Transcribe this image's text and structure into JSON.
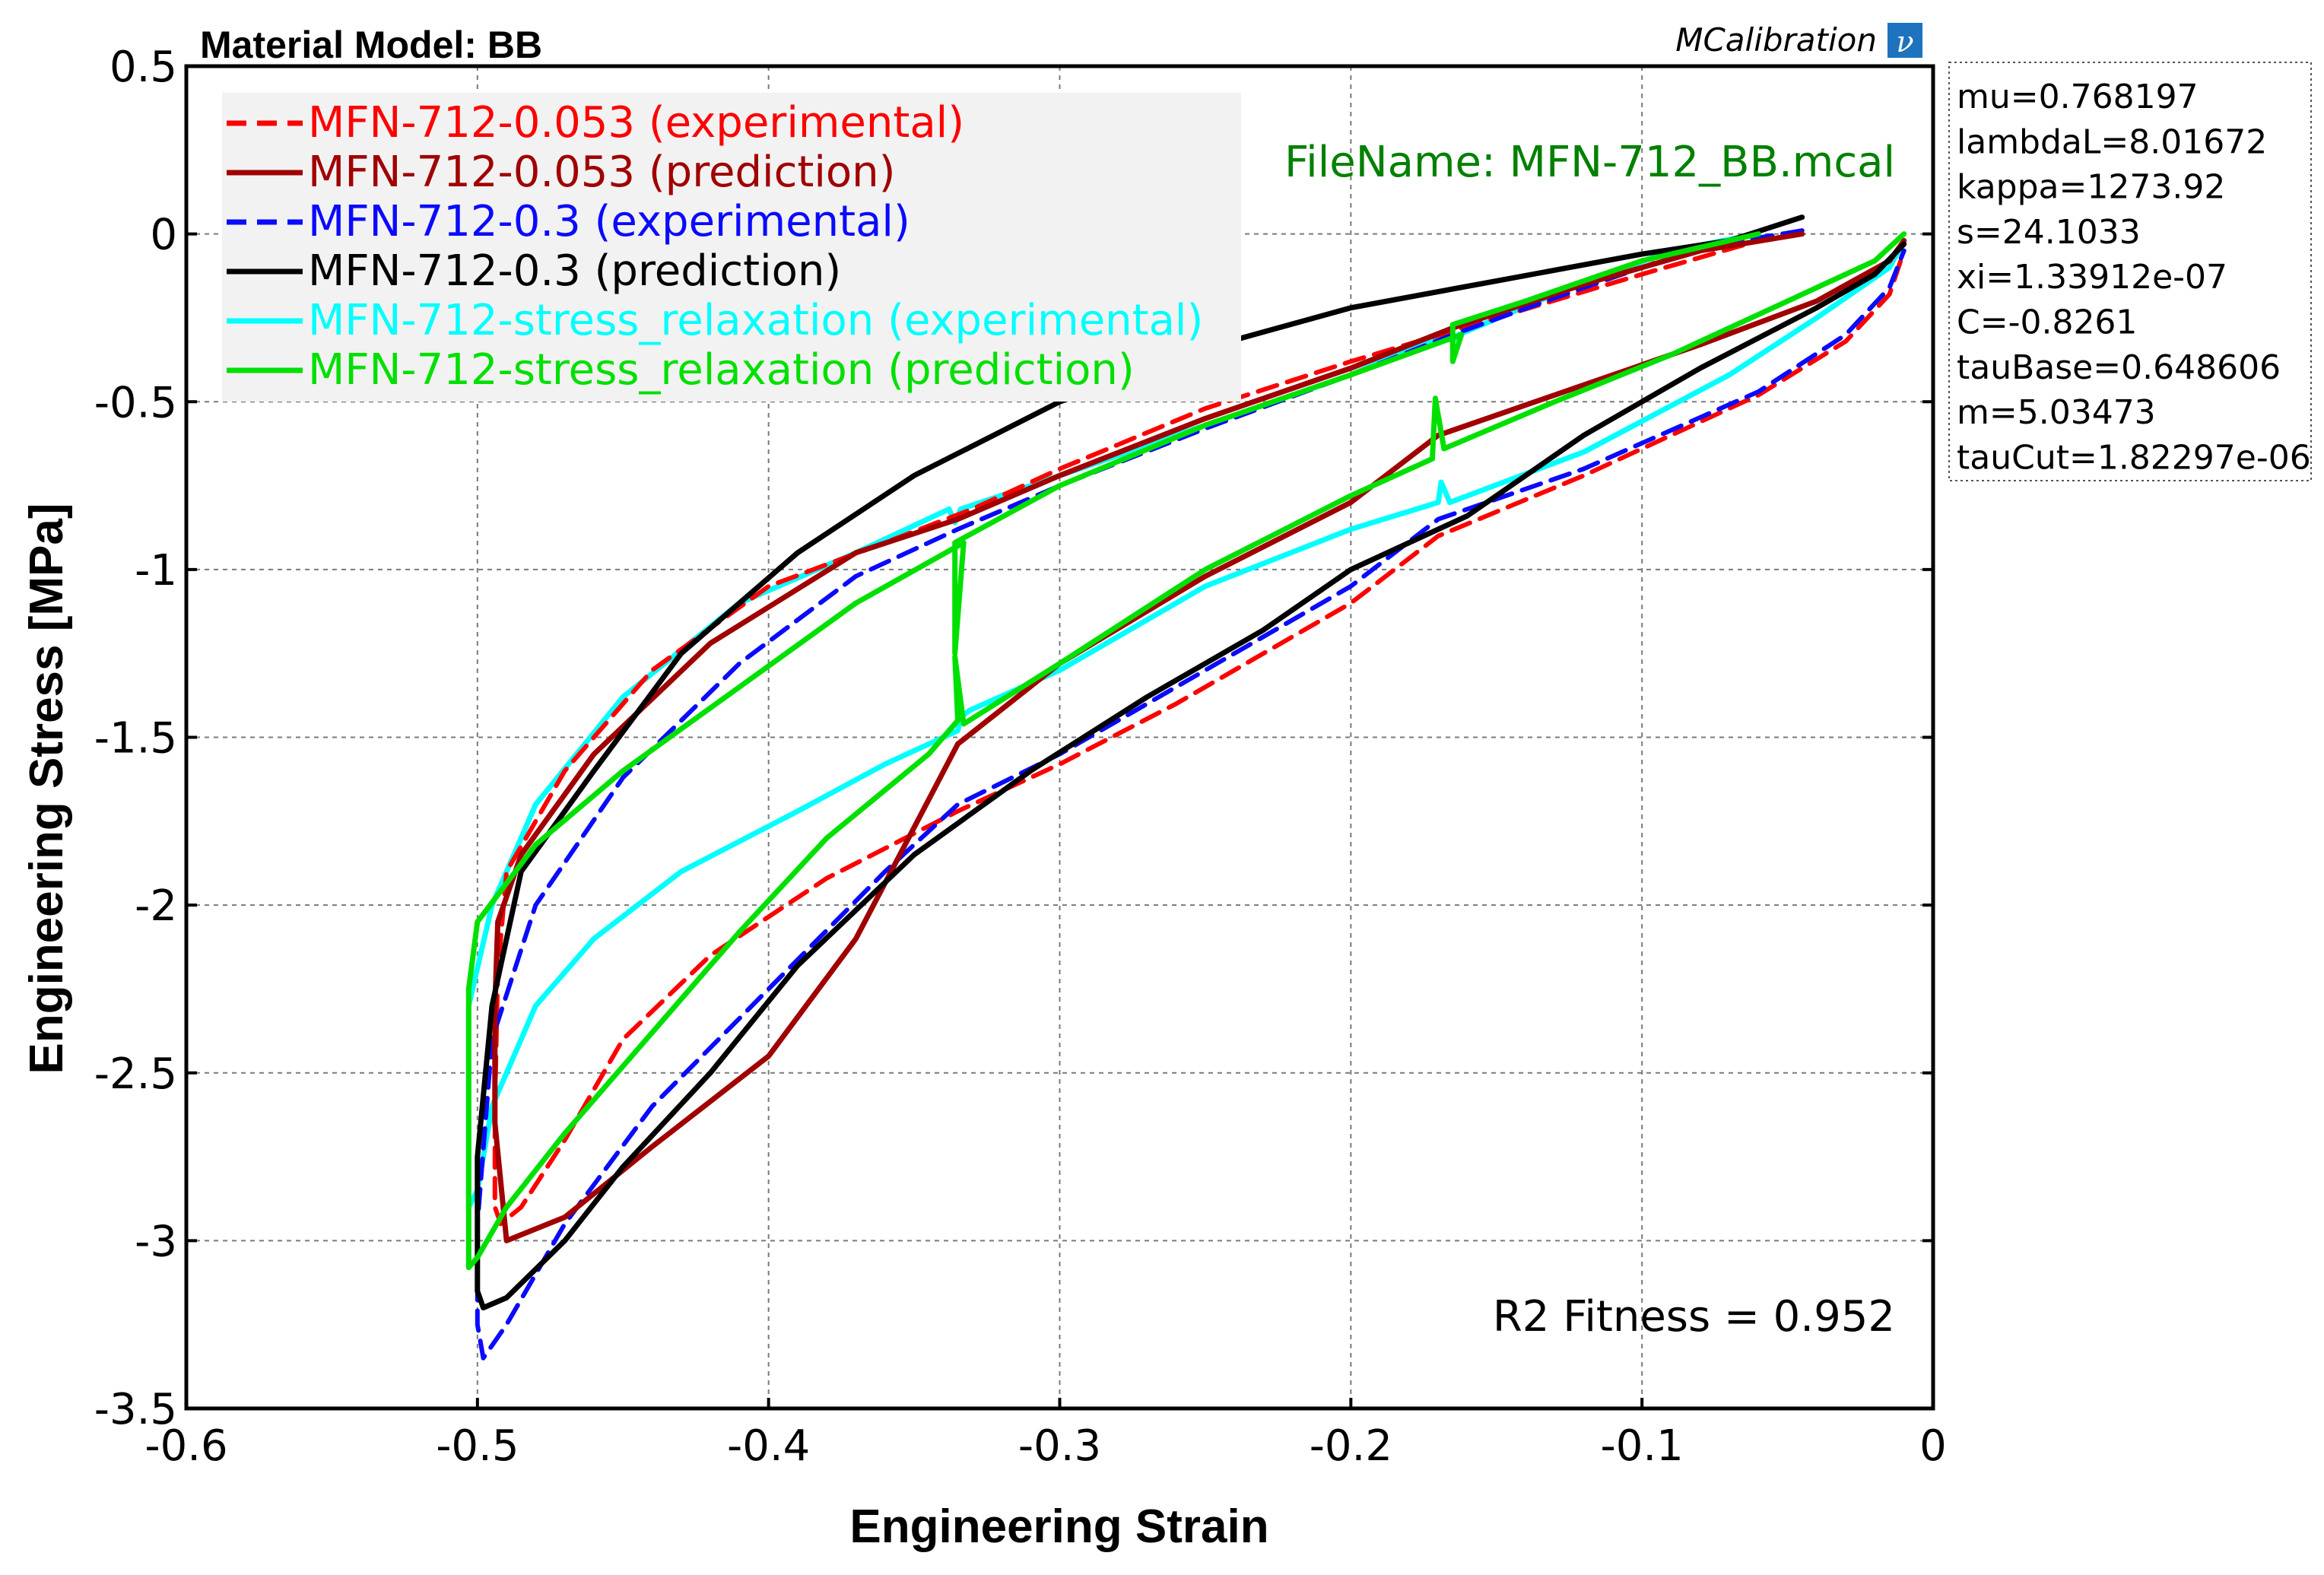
{
  "chart_data": {
    "type": "line",
    "title": "Material Model: BB",
    "brand": "MCalibration",
    "brand_icon": "mcalibration-logo-icon",
    "filename": "FileName: MFN-712_BB.mcal",
    "fitness": "R2 Fitness = 0.952",
    "xlabel": "Engineering Strain",
    "ylabel": "Engineering Stress [MPa]",
    "xlim": [
      -0.6,
      0
    ],
    "ylim": [
      -3.5,
      0.5
    ],
    "x_ticks": [
      "-0.6",
      "-0.5",
      "-0.4",
      "-0.3",
      "-0.2",
      "-0.1",
      "0"
    ],
    "y_ticks": [
      "0.5",
      "0",
      "-0.5",
      "-1",
      "-1.5",
      "-2",
      "-2.5",
      "-3",
      "-3.5"
    ],
    "grid": true,
    "legend_position": "top-left",
    "series": [
      {
        "name": "MFN-712-0.053 (experimental)",
        "color": "#ff0000",
        "dashed": true,
        "x": [
          -0.045,
          -0.06,
          -0.1,
          -0.15,
          -0.2,
          -0.25,
          -0.3,
          -0.33,
          -0.36,
          -0.4,
          -0.44,
          -0.47,
          -0.49,
          -0.493,
          -0.494,
          -0.494,
          -0.492,
          -0.485,
          -0.47,
          -0.45,
          -0.42,
          -0.38,
          -0.335,
          -0.3,
          -0.26,
          -0.2,
          -0.17,
          -0.12,
          -0.06,
          -0.03,
          -0.015,
          -0.01
        ],
        "y": [
          0.01,
          -0.02,
          -0.12,
          -0.25,
          -0.38,
          -0.52,
          -0.7,
          -0.82,
          -0.92,
          -1.05,
          -1.3,
          -1.6,
          -1.9,
          -2.2,
          -2.6,
          -2.9,
          -2.95,
          -2.9,
          -2.7,
          -2.4,
          -2.15,
          -1.92,
          -1.72,
          -1.58,
          -1.4,
          -1.1,
          -0.9,
          -0.72,
          -0.48,
          -0.32,
          -0.18,
          -0.05
        ]
      },
      {
        "name": "MFN-712-0.053 (prediction)",
        "color": "#a00000",
        "dashed": false,
        "x": [
          -0.045,
          -0.08,
          -0.12,
          -0.165,
          -0.2,
          -0.25,
          -0.3,
          -0.335,
          -0.37,
          -0.42,
          -0.46,
          -0.485,
          -0.493,
          -0.494,
          -0.494,
          -0.49,
          -0.47,
          -0.44,
          -0.4,
          -0.37,
          -0.335,
          -0.3,
          -0.25,
          -0.2,
          -0.17,
          -0.12,
          -0.08,
          -0.04,
          -0.015,
          -0.01
        ],
        "y": [
          0.0,
          -0.05,
          -0.15,
          -0.28,
          -0.4,
          -0.55,
          -0.72,
          -0.85,
          -0.95,
          -1.22,
          -1.55,
          -1.85,
          -2.05,
          -2.3,
          -2.65,
          -3.0,
          -2.93,
          -2.72,
          -2.45,
          -2.1,
          -1.52,
          -1.28,
          -1.02,
          -0.8,
          -0.6,
          -0.45,
          -0.33,
          -0.2,
          -0.08,
          -0.02
        ]
      },
      {
        "name": "MFN-712-0.3 (experimental)",
        "color": "#0a0aff",
        "dashed": true,
        "x": [
          -0.045,
          -0.08,
          -0.12,
          -0.165,
          -0.2,
          -0.25,
          -0.3,
          -0.335,
          -0.37,
          -0.41,
          -0.45,
          -0.48,
          -0.495,
          -0.5,
          -0.5,
          -0.498,
          -0.49,
          -0.47,
          -0.44,
          -0.4,
          -0.36,
          -0.335,
          -0.3,
          -0.25,
          -0.2,
          -0.17,
          -0.12,
          -0.06,
          -0.03,
          -0.015,
          -0.01
        ],
        "y": [
          0.01,
          -0.04,
          -0.16,
          -0.3,
          -0.42,
          -0.58,
          -0.75,
          -0.88,
          -1.02,
          -1.28,
          -1.62,
          -2.0,
          -2.4,
          -2.95,
          -3.25,
          -3.35,
          -3.25,
          -2.95,
          -2.6,
          -2.25,
          -1.9,
          -1.7,
          -1.55,
          -1.3,
          -1.05,
          -0.85,
          -0.7,
          -0.47,
          -0.3,
          -0.16,
          -0.05
        ]
      },
      {
        "name": "MFN-712-0.3 (prediction)",
        "color": "#000000",
        "dashed": false,
        "x": [
          -0.045,
          -0.07,
          -0.1,
          -0.15,
          -0.2,
          -0.25,
          -0.3,
          -0.35,
          -0.39,
          -0.43,
          -0.46,
          -0.485,
          -0.495,
          -0.5,
          -0.5,
          -0.498,
          -0.49,
          -0.47,
          -0.45,
          -0.42,
          -0.39,
          -0.35,
          -0.31,
          -0.27,
          -0.23,
          -0.2,
          -0.16,
          -0.12,
          -0.08,
          -0.04,
          -0.02,
          -0.01
        ],
        "y": [
          0.05,
          -0.02,
          -0.06,
          -0.14,
          -0.22,
          -0.34,
          -0.5,
          -0.72,
          -0.95,
          -1.25,
          -1.6,
          -1.9,
          -2.3,
          -2.75,
          -3.15,
          -3.2,
          -3.17,
          -3.0,
          -2.78,
          -2.5,
          -2.18,
          -1.85,
          -1.6,
          -1.38,
          -1.18,
          -1.0,
          -0.84,
          -0.6,
          -0.4,
          -0.22,
          -0.12,
          -0.03
        ]
      },
      {
        "name": "MFN-712-stress_relaxation (experimental)",
        "color": "#00ffff",
        "dashed": false,
        "x": [
          -0.06,
          -0.09,
          -0.13,
          -0.163,
          -0.165,
          -0.168,
          -0.2,
          -0.26,
          -0.31,
          -0.334,
          -0.336,
          -0.338,
          -0.37,
          -0.41,
          -0.45,
          -0.48,
          -0.495,
          -0.503,
          -0.503,
          -0.5,
          -0.495,
          -0.48,
          -0.46,
          -0.43,
          -0.39,
          -0.36,
          -0.335,
          -0.334,
          -0.331,
          -0.3,
          -0.25,
          -0.2,
          -0.17,
          -0.169,
          -0.166,
          -0.12,
          -0.07,
          -0.04,
          -0.015,
          -0.01
        ],
        "y": [
          0.0,
          -0.05,
          -0.18,
          -0.3,
          -0.32,
          -0.3,
          -0.42,
          -0.6,
          -0.75,
          -0.82,
          -0.86,
          -0.82,
          -0.95,
          -1.1,
          -1.38,
          -1.7,
          -2.0,
          -2.3,
          -2.9,
          -2.85,
          -2.6,
          -2.3,
          -2.1,
          -1.9,
          -1.72,
          -1.58,
          -1.48,
          -1.44,
          -1.42,
          -1.3,
          -1.05,
          -0.88,
          -0.8,
          -0.74,
          -0.8,
          -0.65,
          -0.42,
          -0.25,
          -0.1,
          -0.02
        ]
      },
      {
        "name": "MFN-712-stress_relaxation (prediction)",
        "color": "#00e000",
        "dashed": false,
        "x": [
          -0.06,
          -0.1,
          -0.14,
          -0.165,
          -0.165,
          -0.162,
          -0.2,
          -0.25,
          -0.3,
          -0.336,
          -0.336,
          -0.333,
          -0.37,
          -0.41,
          -0.45,
          -0.48,
          -0.5,
          -0.503,
          -0.503,
          -0.5,
          -0.49,
          -0.47,
          -0.44,
          -0.41,
          -0.38,
          -0.345,
          -0.335,
          -0.336,
          -0.333,
          -0.3,
          -0.25,
          -0.2,
          -0.172,
          -0.171,
          -0.168,
          -0.13,
          -0.09,
          -0.05,
          -0.02,
          -0.01
        ],
        "y": [
          0.0,
          -0.08,
          -0.2,
          -0.27,
          -0.38,
          -0.3,
          -0.42,
          -0.57,
          -0.75,
          -0.92,
          -1.25,
          -0.92,
          -1.1,
          -1.35,
          -1.6,
          -1.82,
          -2.05,
          -2.25,
          -3.08,
          -3.05,
          -2.9,
          -2.68,
          -2.38,
          -2.08,
          -1.8,
          -1.55,
          -1.45,
          -1.26,
          -1.46,
          -1.28,
          -1.0,
          -0.78,
          -0.67,
          -0.49,
          -0.64,
          -0.5,
          -0.36,
          -0.2,
          -0.08,
          -0.0
        ]
      }
    ],
    "parameters": [
      "mu=0.768197",
      "lambdaL=8.01672",
      "kappa=1273.92",
      "s=24.1033",
      "xi=1.33912e-07",
      "C=-0.8261",
      "tauBase=0.648606",
      "m=5.03473",
      "tauCut=1.82297e-06"
    ],
    "colors": {
      "filename": "#008000",
      "logo_bg": "#1e73be"
    }
  }
}
